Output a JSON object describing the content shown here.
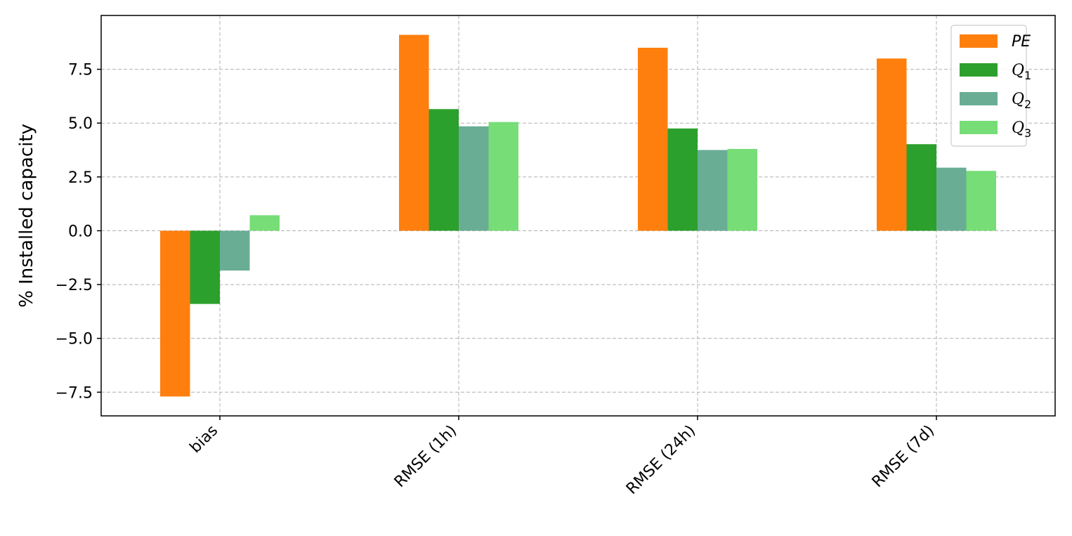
{
  "chart_data": {
    "type": "bar",
    "ylabel": "% Installed capacity",
    "xlabel": "",
    "categories": [
      "bias",
      "RMSE (1h)",
      "RMSE (24h)",
      "RMSE (7d)"
    ],
    "series": [
      {
        "name": "PE",
        "name_style": "italic",
        "subscript": "",
        "color": "#ff7f0e",
        "values": [
          -7.7,
          9.1,
          8.5,
          8.0
        ]
      },
      {
        "name": "Q",
        "name_style": "script",
        "subscript": "1",
        "color": "#2ca02c",
        "values": [
          -3.4,
          5.65,
          4.75,
          4.02
        ]
      },
      {
        "name": "Q",
        "name_style": "script",
        "subscript": "2",
        "color": "#69ae94",
        "values": [
          -1.85,
          4.85,
          3.75,
          2.93
        ]
      },
      {
        "name": "Q",
        "name_style": "script",
        "subscript": "3",
        "color": "#77dd77",
        "values": [
          0.72,
          5.05,
          3.8,
          2.78
        ]
      }
    ],
    "ylim": [
      -8.6,
      10.0
    ],
    "yticks": [
      "−7.5",
      "−5.0",
      "−2.5",
      "0.0",
      "2.5",
      "5.0",
      "7.5"
    ],
    "ytick_values": [
      -7.5,
      -5.0,
      -2.5,
      0.0,
      2.5,
      5.0,
      7.5
    ],
    "grid": true,
    "legend_position": "top-right"
  }
}
